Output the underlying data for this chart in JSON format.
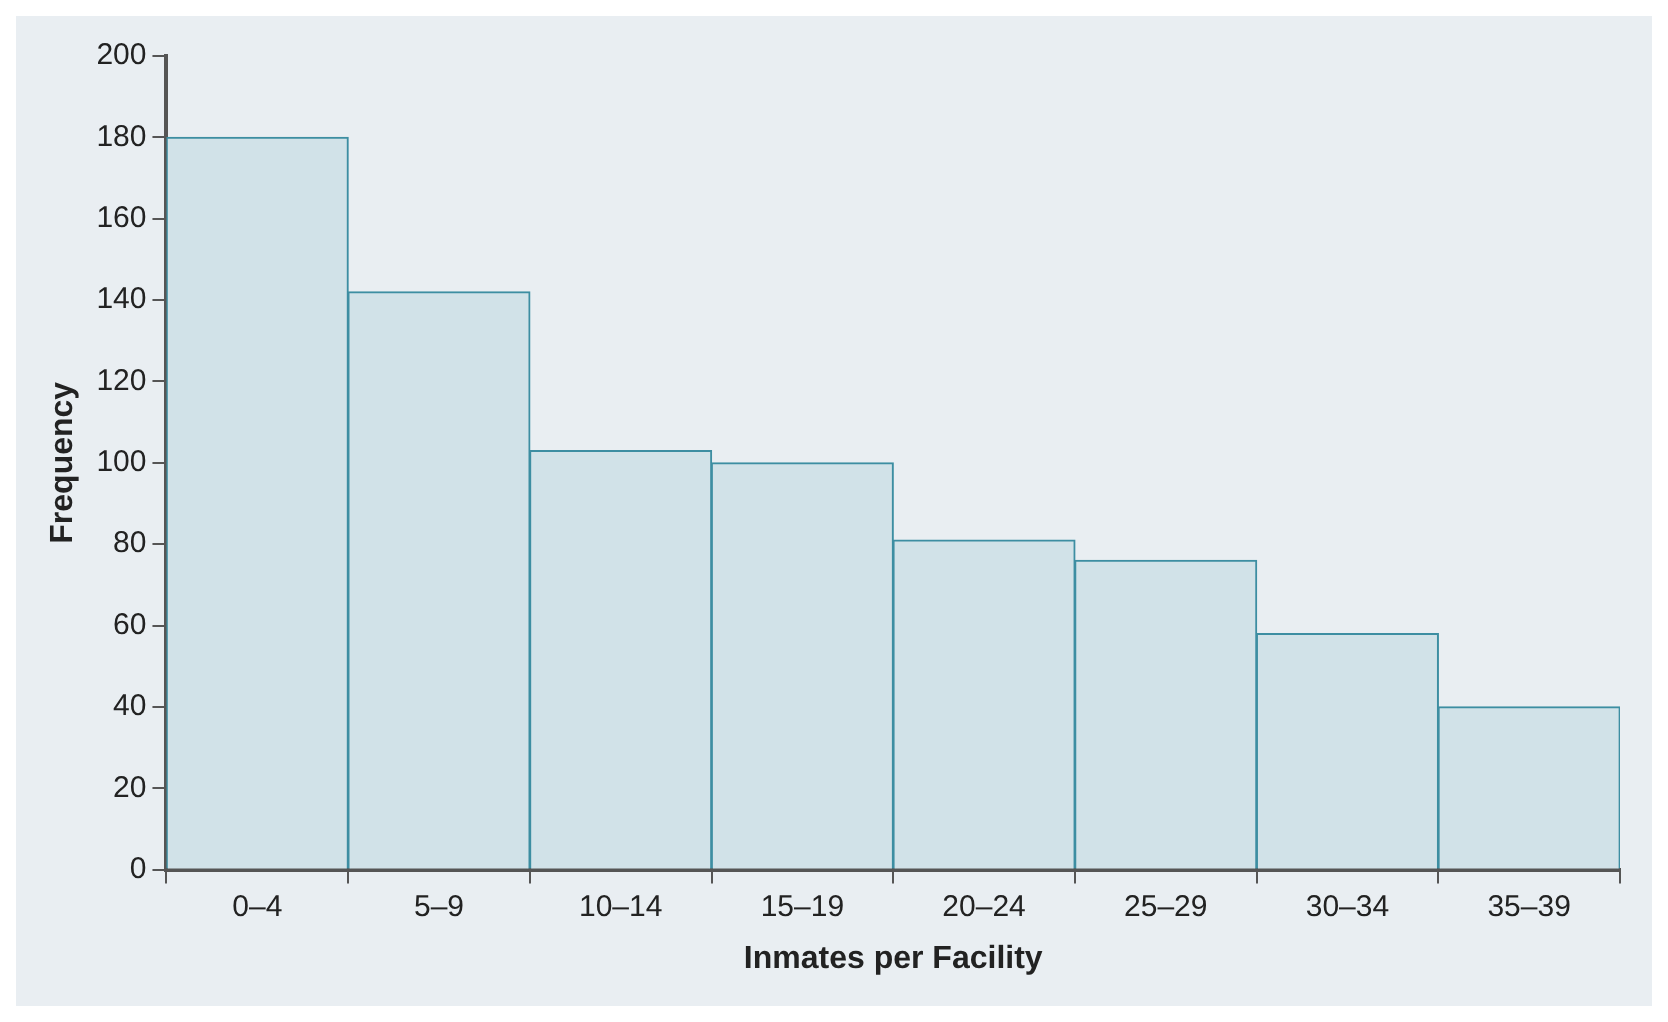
{
  "chart_data": {
    "type": "bar",
    "xlabel": "Inmates per Facility",
    "ylabel": "Frequency",
    "categories": [
      "0–4",
      "5–9",
      "10–14",
      "15–19",
      "20–24",
      "25–29",
      "30–34",
      "35–39"
    ],
    "values": [
      180,
      142,
      103,
      100,
      81,
      76,
      58,
      40
    ],
    "color": "#d1e2e8",
    "ylim": [
      0,
      200
    ],
    "yticks": [
      0,
      20,
      40,
      60,
      80,
      100,
      120,
      140,
      160,
      180,
      200
    ],
    "grid": false,
    "legend": false
  }
}
